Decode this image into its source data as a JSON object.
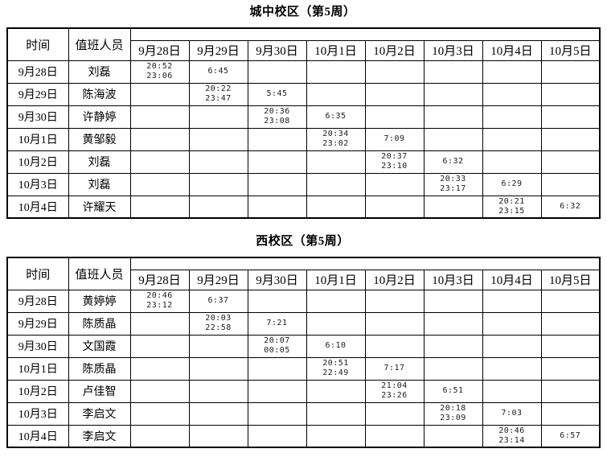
{
  "page": {
    "background": "#ffffff",
    "text_color": "#000000",
    "border_color": "#000000"
  },
  "tables": [
    {
      "title": "城中校区（第5周）",
      "headers": {
        "time": "时间",
        "person": "值班人员"
      },
      "date_columns": [
        "9月28日",
        "9月29日",
        "9月30日",
        "10月1日",
        "10月2日",
        "10月3日",
        "10月4日",
        "10月5日"
      ],
      "rows": [
        {
          "date": "9月28日",
          "person": "刘磊",
          "cells": [
            [
              "20:52",
              "23:06"
            ],
            [
              "6:45"
            ],
            [],
            [],
            [],
            [],
            [],
            []
          ]
        },
        {
          "date": "9月29日",
          "person": "陈海波",
          "cells": [
            [],
            [
              "20:22",
              "23:47"
            ],
            [
              "5:45"
            ],
            [],
            [],
            [],
            [],
            []
          ]
        },
        {
          "date": "9月30日",
          "person": "许静婷",
          "cells": [
            [],
            [],
            [
              "20:36",
              "23:08"
            ],
            [
              "6:35"
            ],
            [],
            [],
            [],
            []
          ]
        },
        {
          "date": "10月1日",
          "person": "黄邹毅",
          "cells": [
            [],
            [],
            [],
            [
              "20:34",
              "23:02"
            ],
            [
              "7:09"
            ],
            [],
            [],
            []
          ]
        },
        {
          "date": "10月2日",
          "person": "刘磊",
          "cells": [
            [],
            [],
            [],
            [],
            [
              "20:37",
              "23:10"
            ],
            [
              "6:32"
            ],
            [],
            []
          ]
        },
        {
          "date": "10月3日",
          "person": "刘磊",
          "cells": [
            [],
            [],
            [],
            [],
            [],
            [
              "20:33",
              "23:17"
            ],
            [
              "6:29"
            ],
            []
          ]
        },
        {
          "date": "10月4日",
          "person": "许耀天",
          "cells": [
            [],
            [],
            [],
            [],
            [],
            [],
            [
              "20:21",
              "23:15"
            ],
            [
              "6:32"
            ]
          ]
        }
      ]
    },
    {
      "title": "西校区（第5周）",
      "headers": {
        "time": "时间",
        "person": "值班人员"
      },
      "date_columns": [
        "9月28日",
        "9月29日",
        "9月30日",
        "10月1日",
        "10月2日",
        "10月3日",
        "10月4日",
        "10月5日"
      ],
      "rows": [
        {
          "date": "9月28日",
          "person": "黄婷婷",
          "cells": [
            [
              "20:46",
              "23:12"
            ],
            [
              "6:37"
            ],
            [],
            [],
            [],
            [],
            [],
            []
          ]
        },
        {
          "date": "9月29日",
          "person": "陈质晶",
          "cells": [
            [],
            [
              "20:03",
              "22:58"
            ],
            [
              "7:21"
            ],
            [],
            [],
            [],
            [],
            []
          ]
        },
        {
          "date": "9月30日",
          "person": "文国霞",
          "cells": [
            [],
            [],
            [
              "20:07",
              "00:05"
            ],
            [
              "6:10"
            ],
            [],
            [],
            [],
            []
          ]
        },
        {
          "date": "10月1日",
          "person": "陈质晶",
          "cells": [
            [],
            [],
            [],
            [
              "20:51",
              "22:49"
            ],
            [
              "7:17"
            ],
            [],
            [],
            []
          ]
        },
        {
          "date": "10月2日",
          "person": "卢佳智",
          "cells": [
            [],
            [],
            [],
            [],
            [
              "21:04",
              "23:26"
            ],
            [
              "6:51"
            ],
            [],
            []
          ]
        },
        {
          "date": "10月3日",
          "person": "李启文",
          "cells": [
            [],
            [],
            [],
            [],
            [],
            [
              "20:18",
              "23:09"
            ],
            [
              "7:03"
            ],
            []
          ]
        },
        {
          "date": "10月4日",
          "person": "李启文",
          "cells": [
            [],
            [],
            [],
            [],
            [],
            [],
            [
              "20:46",
              "23:14"
            ],
            [
              "6:57"
            ]
          ]
        }
      ]
    }
  ]
}
